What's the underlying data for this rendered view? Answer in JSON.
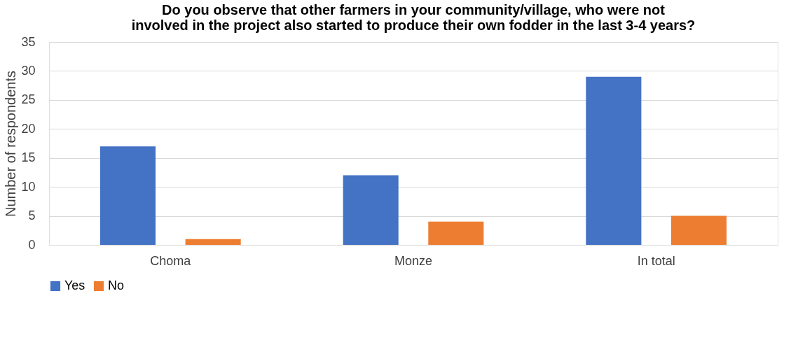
{
  "chart_data": {
    "type": "bar",
    "title": "Do you observe that other farmers in your community/village, who were not\ninvolved  in the project also started to produce their own fodder in the last 3-4 years?",
    "ylabel": "Number of respondents",
    "categories": [
      "Choma",
      "Monze",
      "In total"
    ],
    "series": [
      {
        "name": "Yes",
        "color": "#4472c4",
        "values": [
          17,
          12,
          29
        ]
      },
      {
        "name": "No",
        "color": "#ed7d31",
        "values": [
          1,
          4,
          5
        ]
      }
    ],
    "ylim": [
      0,
      35
    ],
    "yticks": [
      0,
      5,
      10,
      15,
      20,
      25,
      30,
      35
    ],
    "grid": "y",
    "legend": "bottom"
  }
}
